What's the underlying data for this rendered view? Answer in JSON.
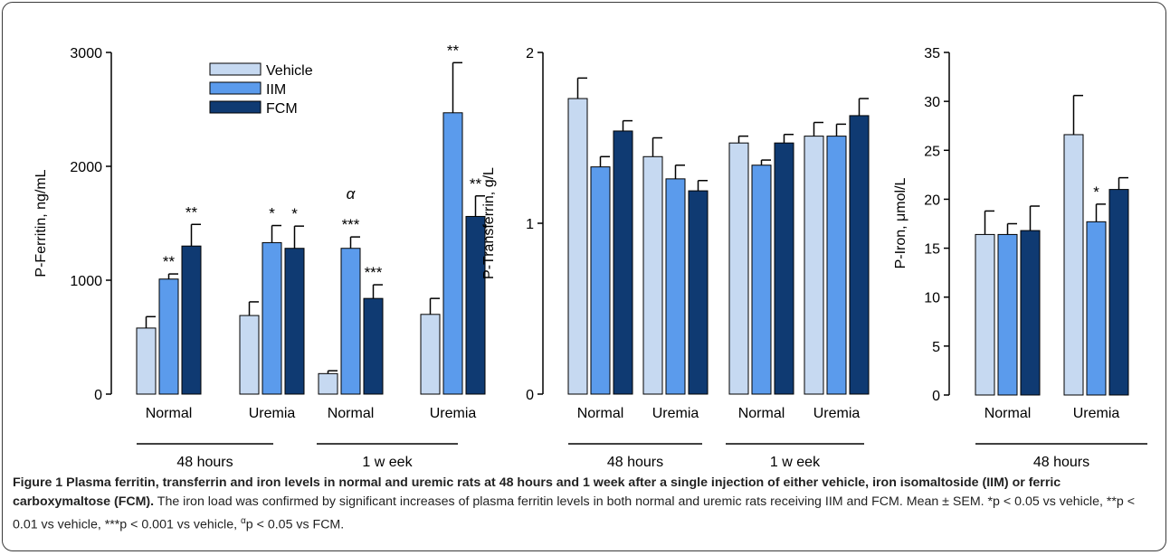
{
  "colors": {
    "vehicle": "#c6d9f1",
    "iim": "#5b9bec",
    "fcm": "#0f3a72",
    "axis": "#000000"
  },
  "chart_data": [
    {
      "type": "bar",
      "ylabel": "P-Ferritin, ng/mL",
      "ylim": [
        0,
        3000
      ],
      "yticks": [
        0,
        1000,
        2000,
        3000
      ],
      "ytick_labels": [
        "0",
        "1000",
        "2000",
        "3000"
      ],
      "legend_placement": "top-center",
      "series": [
        {
          "name": "Vehicle",
          "key": "vehicle"
        },
        {
          "name": "IIM",
          "key": "iim"
        },
        {
          "name": "FCM",
          "key": "fcm"
        }
      ],
      "supergroups": [
        {
          "label": "48 hours",
          "groups": [
            0,
            1
          ]
        },
        {
          "label": "1 w eek",
          "groups": [
            2,
            3
          ]
        }
      ],
      "groups": [
        {
          "label": "Normal",
          "values": [
            580,
            1010,
            1300
          ],
          "errors": [
            100,
            45,
            190
          ],
          "annotations": [
            "",
            "**",
            "**"
          ]
        },
        {
          "label": "Uremia",
          "values": [
            690,
            1330,
            1280
          ],
          "errors": [
            120,
            150,
            195
          ],
          "annotations": [
            "",
            "*",
            "*"
          ]
        },
        {
          "label": "Normal",
          "values": [
            180,
            1280,
            840
          ],
          "errors": [
            25,
            100,
            120
          ],
          "annotations": [
            "",
            "***",
            "***"
          ],
          "group_annotation": "α"
        },
        {
          "label": "Uremia",
          "values": [
            700,
            2470,
            1560
          ],
          "errors": [
            140,
            440,
            180
          ],
          "annotations": [
            "",
            "**",
            "**"
          ]
        }
      ]
    },
    {
      "type": "bar",
      "ylabel": "P-Transferrin, g/L",
      "ylim": [
        0,
        2
      ],
      "yticks": [
        0,
        1,
        2
      ],
      "ytick_labels": [
        "0",
        "1",
        "2"
      ],
      "supergroups": [
        {
          "label": "48 hours",
          "groups": [
            0,
            1
          ]
        },
        {
          "label": "1 w eek",
          "groups": [
            2,
            3
          ]
        }
      ],
      "groups": [
        {
          "label": "Normal",
          "values": [
            1.73,
            1.33,
            1.54
          ],
          "errors": [
            0.12,
            0.06,
            0.06
          ],
          "annotations": [
            "",
            "",
            ""
          ]
        },
        {
          "label": "Uremia",
          "values": [
            1.39,
            1.26,
            1.19
          ],
          "errors": [
            0.11,
            0.08,
            0.06
          ],
          "annotations": [
            "",
            "",
            ""
          ]
        },
        {
          "label": "Normal",
          "values": [
            1.47,
            1.34,
            1.47
          ],
          "errors": [
            0.04,
            0.03,
            0.05
          ],
          "annotations": [
            "",
            "",
            ""
          ]
        },
        {
          "label": "Uremia",
          "values": [
            1.51,
            1.51,
            1.63
          ],
          "errors": [
            0.08,
            0.07,
            0.1
          ],
          "annotations": [
            "",
            "",
            ""
          ]
        }
      ]
    },
    {
      "type": "bar",
      "ylabel": "P-Iron, μmol/L",
      "ylim": [
        0,
        35
      ],
      "yticks": [
        0,
        5,
        10,
        15,
        20,
        25,
        30,
        35
      ],
      "ytick_labels": [
        "0",
        "5",
        "10",
        "15",
        "20",
        "25",
        "30",
        "35"
      ],
      "supergroups": [
        {
          "label": "48 hours",
          "groups": [
            0,
            1
          ]
        }
      ],
      "groups": [
        {
          "label": "Normal",
          "values": [
            16.4,
            16.4,
            16.8
          ],
          "errors": [
            2.4,
            1.1,
            2.5
          ],
          "annotations": [
            "",
            "",
            ""
          ]
        },
        {
          "label": "Uremia",
          "values": [
            26.6,
            17.7,
            21.0
          ],
          "errors": [
            4.0,
            1.8,
            1.2
          ],
          "annotations": [
            "",
            "*",
            ""
          ]
        }
      ]
    }
  ],
  "caption": {
    "title": "Figure 1 Plasma ferritin, transferrin and iron levels in normal and uremic rats at 48 hours and 1 week after a single injection of either vehicle, iron isomaltoside (IIM) or ferric carboxymaltose (FCM).",
    "body": "The iron load was confirmed by significant increases of plasma ferritin levels in both normal and uremic rats receiving IIM and FCM. Mean ± SEM. *p < 0.05 vs vehicle, **p < 0.01 vs vehicle, ***p < 0.001 vs vehicle,",
    "alpha_mark": "α",
    "tail": "p < 0.05 vs FCM."
  }
}
